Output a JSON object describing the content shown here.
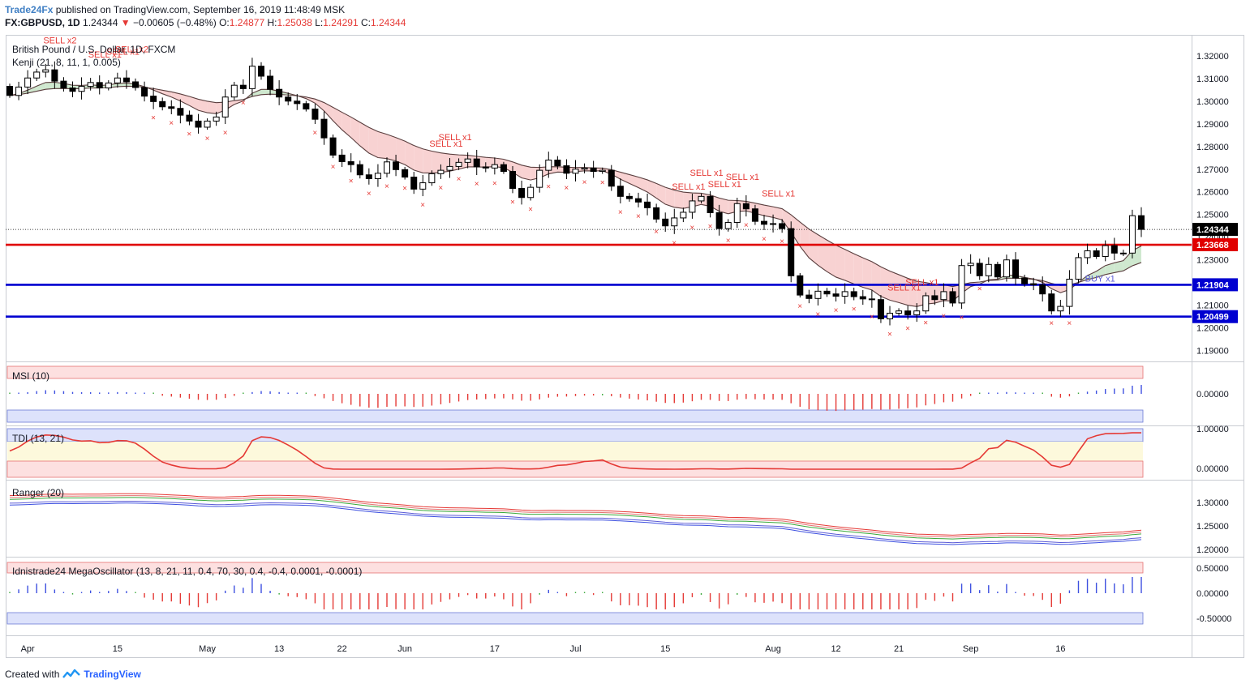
{
  "header": {
    "publisher": "Trade24Fx",
    "published_text": "published on TradingView.com, September 16, 2019 11:48:49 MSK",
    "symbol": "FX:GBPUSD, 1D",
    "last": "1.24344",
    "change_arrow": "▼",
    "change": "−0.00605 (−0.48%)",
    "o_label": "O:",
    "o": "1.24877",
    "h_label": "H:",
    "h": "1.25038",
    "l_label": "L:",
    "l": "1.24291",
    "c_label": "C:",
    "c": "1.24344"
  },
  "footer": {
    "created_with": "Created with",
    "brand": "TradingView",
    "logo_icon": "tradingview-logo-icon"
  },
  "colors": {
    "up": "#ffffff",
    "down": "#000000",
    "sell": "#e53935",
    "buy": "#5b5bd6",
    "support": "#0000d0",
    "resistance": "#e00000",
    "cloud_bear": "#f8d2d2",
    "cloud_bull": "#cfe8cf"
  },
  "chart_data": [
    {
      "type": "candlestick",
      "title": "British Pound / U.S. Dollar, 1D, FXCM",
      "indicator_label": "Kenji (21, 8, 11, 1, 0.005)",
      "y_ticks": [
        1.19,
        1.2,
        1.21,
        1.22,
        1.23,
        1.24,
        1.25,
        1.26,
        1.27,
        1.28,
        1.29,
        1.3,
        1.31,
        1.32
      ],
      "y_tick_labels": [
        "1.19000",
        "1.20000",
        "1.21000",
        "1.22000",
        "1.23000",
        "1.24000",
        "1.25000",
        "1.26000",
        "1.27000",
        "1.28000",
        "1.29000",
        "1.30000",
        "1.31000",
        "1.32000"
      ],
      "ylim": [
        1.1856,
        1.3285
      ],
      "x_ticks": [
        {
          "i": 2,
          "label": "Apr"
        },
        {
          "i": 12,
          "label": "15"
        },
        {
          "i": 22,
          "label": "May"
        },
        {
          "i": 30,
          "label": "13"
        },
        {
          "i": 37,
          "label": "22"
        },
        {
          "i": 44,
          "label": "Jun"
        },
        {
          "i": 54,
          "label": "17"
        },
        {
          "i": 63,
          "label": "Jul"
        },
        {
          "i": 73,
          "label": "15"
        },
        {
          "i": 85,
          "label": "Aug"
        },
        {
          "i": 92,
          "label": "12"
        },
        {
          "i": 99,
          "label": "21"
        },
        {
          "i": 107,
          "label": "Sep"
        },
        {
          "i": 117,
          "label": "16"
        }
      ],
      "close": [
        1.3025,
        1.3062,
        1.3102,
        1.3128,
        1.3138,
        1.3088,
        1.3058,
        1.3043,
        1.3065,
        1.3082,
        1.3058,
        1.308,
        1.3102,
        1.3085,
        1.306,
        1.3022,
        1.2998,
        1.2975,
        1.2968,
        1.2938,
        1.2912,
        1.2885,
        1.2912,
        1.293,
        1.3018,
        1.307,
        1.3055,
        1.3154,
        1.311,
        1.3052,
        1.3018,
        1.3,
        1.2989,
        1.2965,
        1.292,
        1.2838,
        1.2762,
        1.2733,
        1.272,
        1.2675,
        1.2658,
        1.2682,
        1.2732,
        1.2698,
        1.2665,
        1.2612,
        1.264,
        1.268,
        1.2695,
        1.2712,
        1.273,
        1.2745,
        1.271,
        1.2705,
        1.272,
        1.269,
        1.2615,
        1.2575,
        1.262,
        1.2695,
        1.274,
        1.2715,
        1.2682,
        1.27,
        1.2705,
        1.269,
        1.2695,
        1.2625,
        1.258,
        1.257,
        1.2555,
        1.253,
        1.248,
        1.245,
        1.2485,
        1.251,
        1.256,
        1.258,
        1.2508,
        1.2438,
        1.2465,
        1.2548,
        1.2525,
        1.247,
        1.2457,
        1.246,
        1.2438,
        1.223,
        1.2145,
        1.213,
        1.2162,
        1.215,
        1.214,
        1.216,
        1.2138,
        1.2128,
        1.2125,
        1.204,
        1.2065,
        1.2075,
        1.2058,
        1.2075,
        1.2142,
        1.2125,
        1.216,
        1.211,
        1.2275,
        1.2285,
        1.223,
        1.228,
        1.2225,
        1.23,
        1.222,
        1.2195,
        1.219,
        1.215,
        1.2075,
        1.2095,
        1.2215,
        1.231,
        1.234,
        1.2315,
        1.2363,
        1.233,
        1.233,
        1.2495,
        1.24344
      ],
      "series_ranger": [],
      "horizontal_lines": [
        {
          "name": "resistance",
          "value": 1.23668,
          "label": "1.23668",
          "color": "#e00000"
        },
        {
          "name": "support-upper",
          "value": 1.21904,
          "label": "1.21904",
          "color": "#0000d0"
        },
        {
          "name": "support-lower",
          "value": 1.20499,
          "label": "1.20499",
          "color": "#0000d0"
        },
        {
          "name": "last-price",
          "value": 1.24344,
          "label": "1.24344",
          "color": "#000000"
        }
      ],
      "annotations": [
        {
          "text": "SELL x2",
          "i": 5
        },
        {
          "text": "SELL x1",
          "i": 10
        },
        {
          "text": "SELL x1",
          "i": 12
        },
        {
          "text": "SELL x2",
          "i": 13
        },
        {
          "text": "SELL x1",
          "i": 48
        },
        {
          "text": "SELL x1",
          "i": 49
        },
        {
          "text": "SELL x1",
          "i": 75
        },
        {
          "text": "SELL x1",
          "i": 77
        },
        {
          "text": "SELL x1",
          "i": 79
        },
        {
          "text": "SELL x1",
          "i": 81
        },
        {
          "text": "SELL x1",
          "i": 85
        },
        {
          "text": "SELL x1",
          "i": 99
        },
        {
          "text": "SELL x1",
          "i": 101
        },
        {
          "text": "BUY x1",
          "i": 121
        }
      ]
    },
    {
      "type": "bar",
      "title": "MSI (10)",
      "y_tick_labels": [
        "0.00000"
      ]
    },
    {
      "type": "line",
      "title": "TDI (13, 21)",
      "y_tick_labels": [
        "1.00000",
        "0.00000"
      ]
    },
    {
      "type": "line",
      "title": "Ranger (20)",
      "y_tick_labels": [
        "1.30000",
        "1.25000",
        "1.20000"
      ]
    },
    {
      "type": "bar",
      "title": "Idnistrade24 MegaOscillator (13, 8, 21, 11, 0.4, 70, 30, 0.4, -0.4, 0.0001, -0.0001)",
      "y_tick_labels": [
        "0.50000",
        "0.00000",
        "-0.50000"
      ]
    }
  ]
}
